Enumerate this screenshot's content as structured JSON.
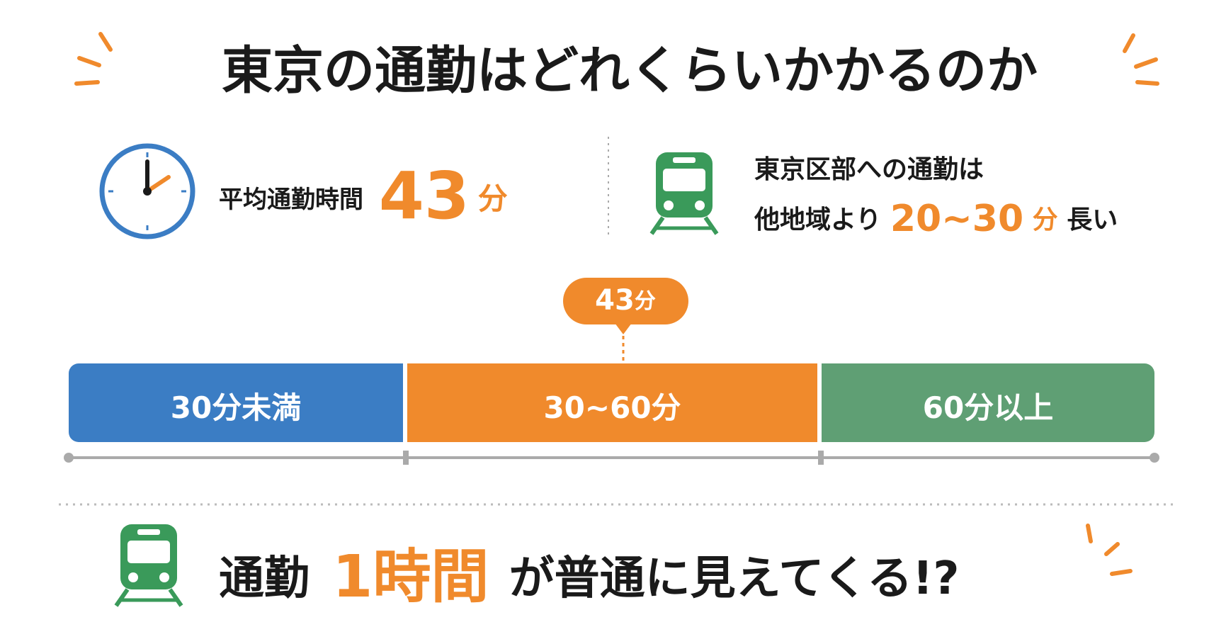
{
  "header": {
    "title": "東京の通勤はどれくらいかかるのか"
  },
  "stats": {
    "average": {
      "label": "平均通勤時間",
      "value": "43",
      "unit": "分"
    },
    "comparison": {
      "line1": "東京区部への通勤は",
      "line2_prefix": "他地域より",
      "value": "20~30",
      "unit": "分",
      "line2_suffix": "長い"
    }
  },
  "marker": {
    "value": "43",
    "unit": "分"
  },
  "segments": [
    {
      "label": "30分未満",
      "color": "#3b7dc4"
    },
    {
      "label": "30~60分",
      "color": "#f08a2c"
    },
    {
      "label": "60分以上",
      "color": "#5f9f74"
    }
  ],
  "footer": {
    "prefix": "通勤",
    "highlight": "1時間",
    "suffix": "が普通に見えてくる!?"
  }
}
